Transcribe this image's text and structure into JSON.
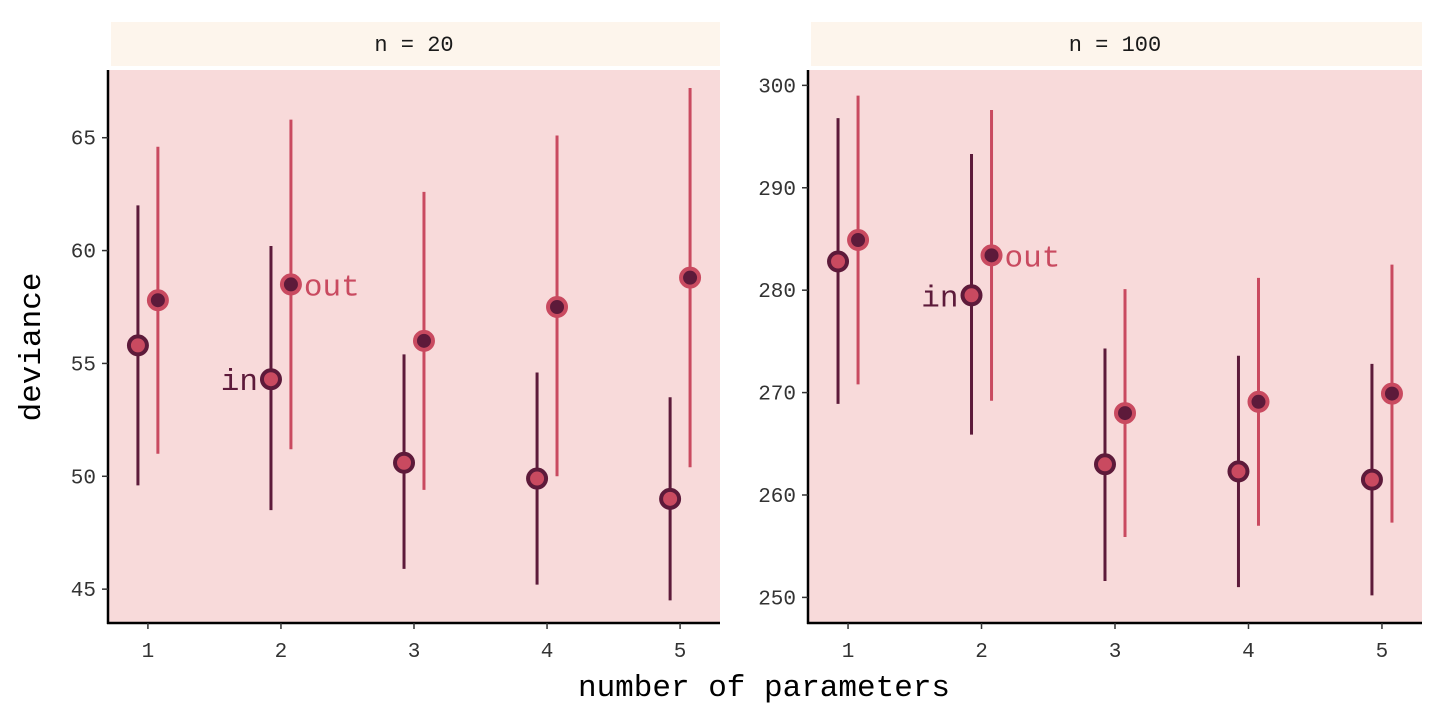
{
  "chart_data": {
    "type": "scatter",
    "xlabel": "number of parameters",
    "ylabel": "deviance",
    "x_ticks": [
      1,
      2,
      3,
      4,
      5
    ],
    "x_range": [
      0.7,
      5.3
    ],
    "colors": {
      "panel_background": "#f8dada",
      "strip_background": "#fdf5ec",
      "in_series": "#5d1a3a",
      "out_series": "#c94a60"
    },
    "series_labels": {
      "in": "in",
      "out": "out"
    },
    "facets": [
      {
        "title": "n = 20",
        "ylim": [
          43.5,
          68
        ],
        "y_ticks": [
          45,
          50,
          55,
          60,
          65
        ],
        "series": [
          {
            "name": "in",
            "points": [
              {
                "x": 1,
                "y": 55.8,
                "lo": 49.6,
                "hi": 62.0
              },
              {
                "x": 2,
                "y": 54.3,
                "lo": 48.5,
                "hi": 60.2
              },
              {
                "x": 3,
                "y": 50.6,
                "lo": 45.9,
                "hi": 55.4
              },
              {
                "x": 4,
                "y": 49.9,
                "lo": 45.2,
                "hi": 54.6
              },
              {
                "x": 5,
                "y": 49.0,
                "lo": 44.5,
                "hi": 53.5
              }
            ]
          },
          {
            "name": "out",
            "points": [
              {
                "x": 1,
                "y": 57.8,
                "lo": 51.0,
                "hi": 64.6
              },
              {
                "x": 2,
                "y": 58.5,
                "lo": 51.2,
                "hi": 65.8
              },
              {
                "x": 3,
                "y": 56.0,
                "lo": 49.4,
                "hi": 62.6
              },
              {
                "x": 4,
                "y": 57.5,
                "lo": 50.0,
                "hi": 65.1
              },
              {
                "x": 5,
                "y": 58.8,
                "lo": 50.4,
                "hi": 67.2
              }
            ]
          }
        ]
      },
      {
        "title": "n = 100",
        "ylim": [
          247.5,
          301.5
        ],
        "y_ticks": [
          250,
          260,
          270,
          280,
          290,
          300
        ],
        "series": [
          {
            "name": "in",
            "points": [
              {
                "x": 1,
                "y": 282.8,
                "lo": 268.9,
                "hi": 296.8
              },
              {
                "x": 2,
                "y": 279.5,
                "lo": 265.9,
                "hi": 293.3
              },
              {
                "x": 3,
                "y": 263.0,
                "lo": 251.6,
                "hi": 274.3
              },
              {
                "x": 4,
                "y": 262.3,
                "lo": 251.0,
                "hi": 273.6
              },
              {
                "x": 5,
                "y": 261.5,
                "lo": 250.2,
                "hi": 272.8
              }
            ]
          },
          {
            "name": "out",
            "points": [
              {
                "x": 1,
                "y": 284.9,
                "lo": 270.8,
                "hi": 299.0
              },
              {
                "x": 2,
                "y": 283.4,
                "lo": 269.2,
                "hi": 297.6
              },
              {
                "x": 3,
                "y": 268.0,
                "lo": 255.9,
                "hi": 280.1
              },
              {
                "x": 4,
                "y": 269.1,
                "lo": 257.0,
                "hi": 281.2
              },
              {
                "x": 5,
                "y": 269.9,
                "lo": 257.3,
                "hi": 282.5
              }
            ]
          }
        ]
      }
    ]
  }
}
